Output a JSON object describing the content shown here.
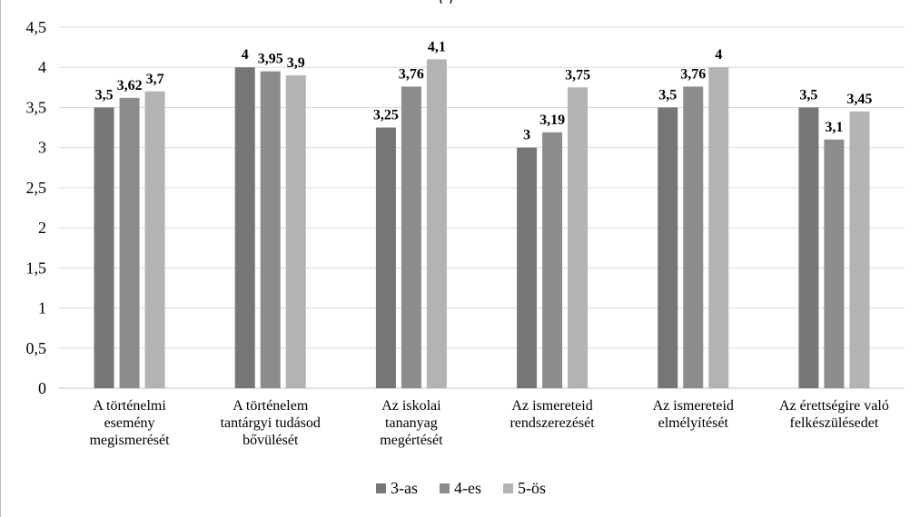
{
  "chart_data": {
    "type": "bar",
    "categories": [
      [
        "A történelmi",
        "esemény",
        "megismerését"
      ],
      [
        "A történelem",
        "tantárgyi tudásod",
        "bővülését"
      ],
      [
        "Az iskolai",
        "tananyag",
        "megértését"
      ],
      [
        "Az ismereteid",
        "rendszerezését"
      ],
      [
        "Az ismereteid",
        "elmélyítését"
      ],
      [
        "Az érettségire való",
        "felkészülésedet"
      ]
    ],
    "series": [
      {
        "name": "3-as",
        "color": "#767676",
        "values": [
          3.5,
          4,
          3.25,
          3,
          3.5,
          3.5
        ],
        "labels": [
          "3,5",
          "4",
          "3,25",
          "3",
          "3,5",
          "3,5"
        ]
      },
      {
        "name": "4-es",
        "color": "#8c8c8c",
        "values": [
          3.62,
          3.95,
          3.76,
          3.19,
          3.76,
          3.1
        ],
        "labels": [
          "3,62",
          "3,95",
          "3,76",
          "3,19",
          "3,76",
          "3,1"
        ]
      },
      {
        "name": "5-ös",
        "color": "#b3b3b3",
        "values": [
          3.7,
          3.9,
          4.1,
          3.75,
          4,
          3.45
        ],
        "labels": [
          "3,7",
          "3,9",
          "4,1",
          "3,75",
          "4",
          "3,45"
        ]
      }
    ],
    "ylim": [
      0,
      4.5
    ],
    "yticks": [
      0,
      0.5,
      1,
      1.5,
      2,
      2.5,
      3,
      3.5,
      4,
      4.5
    ],
    "ytick_labels": [
      "0",
      "0,5",
      "1",
      "1,5",
      "2",
      "2,5",
      "3",
      "3,5",
      "4",
      "4,5"
    ],
    "grid": true,
    "legend_position": "bottom"
  },
  "title_fragment": "(                              )"
}
